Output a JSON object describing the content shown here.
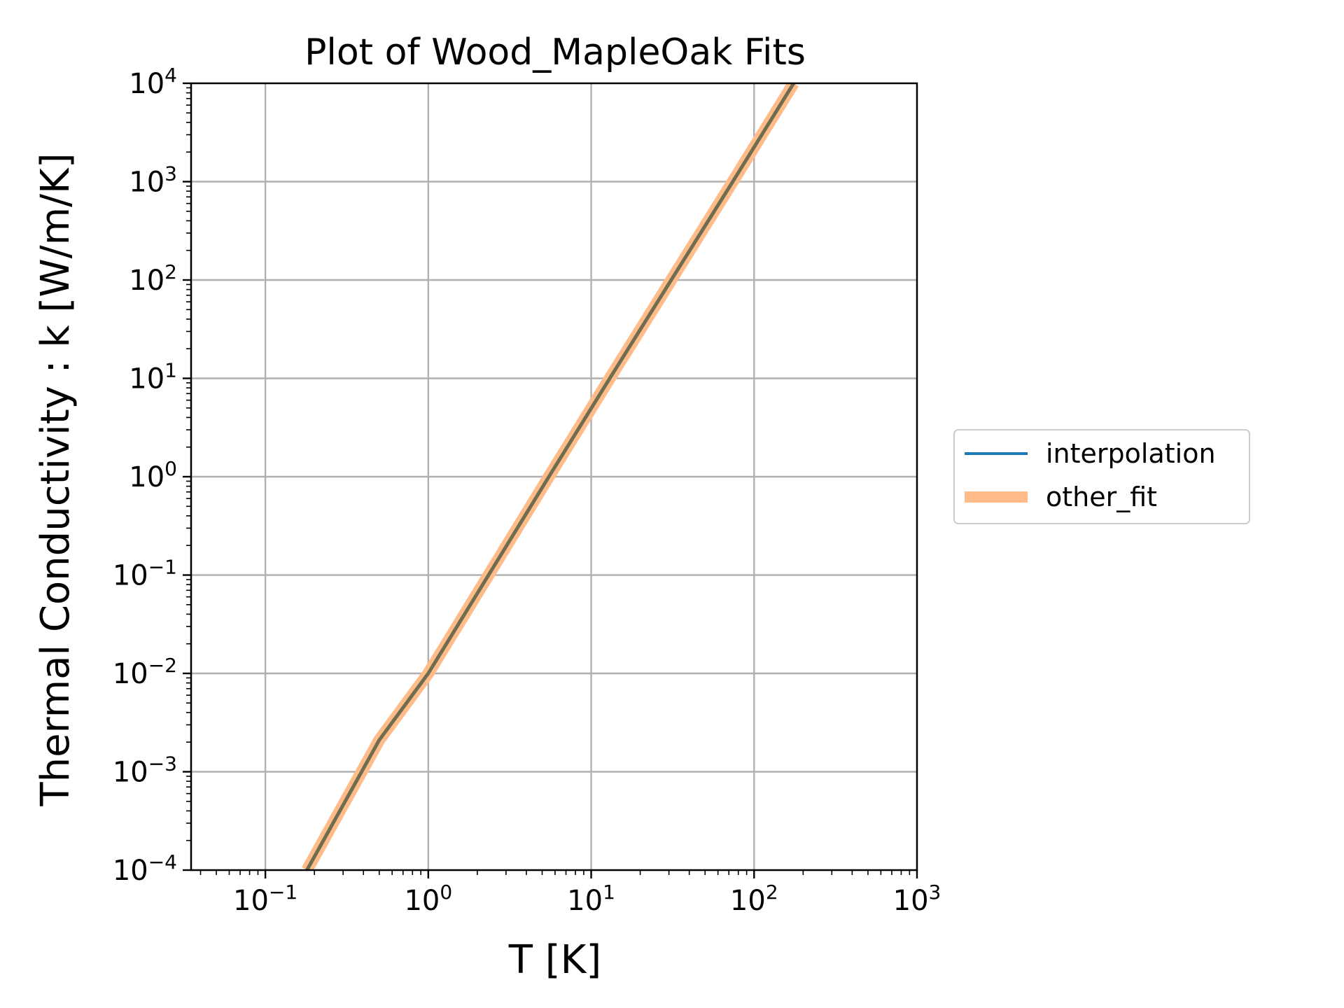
{
  "chart_data": {
    "type": "line",
    "title": "Plot of Wood_MapleOak Fits",
    "xlabel": "T [K]",
    "ylabel": "Thermal Conductivity : k [W/m/K]",
    "xscale": "log",
    "yscale": "log",
    "xlim": [
      0.035,
      1000
    ],
    "ylim": [
      0.0001,
      10000
    ],
    "grid": true,
    "legend_position": "right, outside plot",
    "x_ticks": [
      {
        "base": "10",
        "exp": "−1",
        "value": 0.1
      },
      {
        "base": "10",
        "exp": "0",
        "value": 1
      },
      {
        "base": "10",
        "exp": "1",
        "value": 10
      },
      {
        "base": "10",
        "exp": "2",
        "value": 100
      },
      {
        "base": "10",
        "exp": "3",
        "value": 1000
      }
    ],
    "y_ticks": [
      {
        "base": "10",
        "exp": "−4",
        "value": 0.0001
      },
      {
        "base": "10",
        "exp": "−3",
        "value": 0.001
      },
      {
        "base": "10",
        "exp": "−2",
        "value": 0.01
      },
      {
        "base": "10",
        "exp": "−1",
        "value": 0.1
      },
      {
        "base": "10",
        "exp": "0",
        "value": 1
      },
      {
        "base": "10",
        "exp": "1",
        "value": 10
      },
      {
        "base": "10",
        "exp": "2",
        "value": 100
      },
      {
        "base": "10",
        "exp": "3",
        "value": 1000
      },
      {
        "base": "10",
        "exp": "4",
        "value": 10000
      }
    ],
    "series": [
      {
        "name": "other_fit",
        "color": "#ffbb88",
        "x": [
          0.18,
          0.5,
          1,
          5.5,
          13,
          31,
          74,
          175
        ],
        "y": [
          0.0001,
          0.0021,
          0.01,
          1,
          10,
          100,
          1000,
          10000
        ]
      },
      {
        "name": "interpolation",
        "color": "#1f77b4",
        "x": [
          0.18,
          0.5,
          1,
          5.5,
          13,
          31,
          74,
          175
        ],
        "y": [
          0.0001,
          0.0021,
          0.01,
          1,
          10,
          100,
          1000,
          10000
        ]
      }
    ],
    "line_overlap_color": "#6f6c50"
  }
}
